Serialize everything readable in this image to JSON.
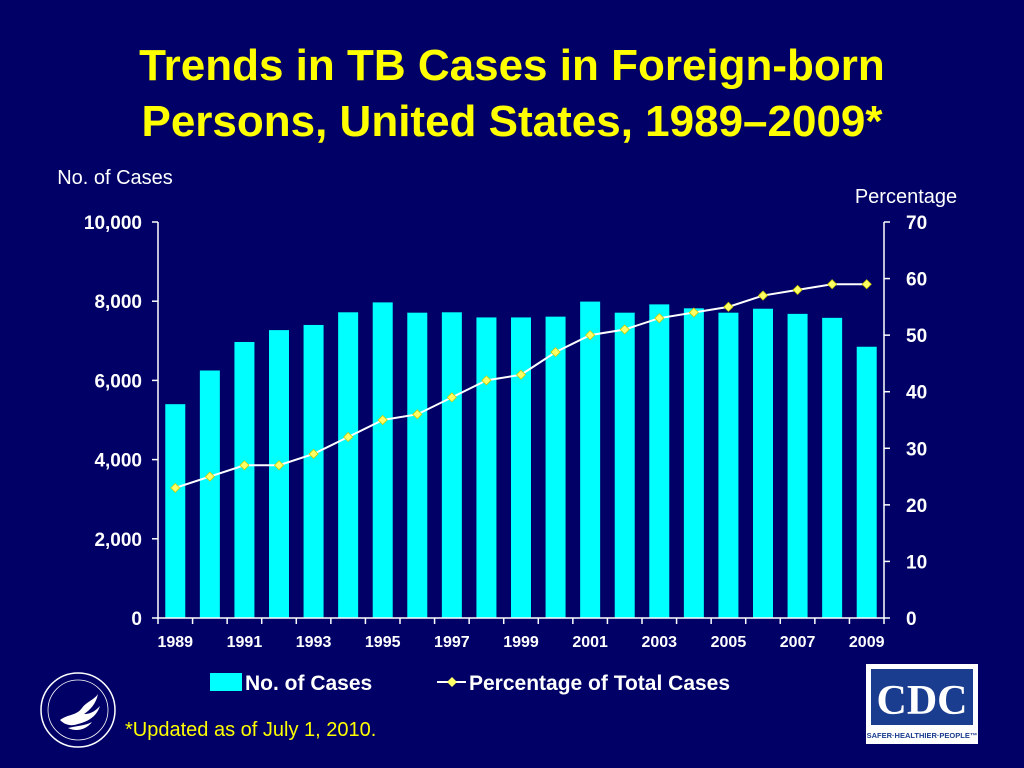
{
  "slide": {
    "title_line1": "Trends in TB Cases in Foreign-born",
    "title_line2": "Persons, United States, 1989–2009*",
    "footnote": "*Updated as of July 1, 2010."
  },
  "logos": {
    "hhs_seal": "hhs-eagle-seal",
    "cdc_text": "CDC",
    "cdc_tagline": "SAFER·HEALTHIER·PEOPLE™"
  },
  "colors": {
    "background": "#000066",
    "title": "#ffff00",
    "bars": "#00ffff",
    "line": "#ffffff",
    "marker": "#ffff66",
    "text": "#ffffff"
  },
  "chart_data": {
    "type": "bar",
    "categories": [
      "1989",
      "1990",
      "1991",
      "1992",
      "1993",
      "1994",
      "1995",
      "1996",
      "1997",
      "1998",
      "1999",
      "2000",
      "2001",
      "2002",
      "2003",
      "2004",
      "2005",
      "2006",
      "2007",
      "2008",
      "2009"
    ],
    "x_tick_labels": [
      "1989",
      "1991",
      "1993",
      "1995",
      "1997",
      "1999",
      "2001",
      "2003",
      "2005",
      "2007",
      "2009"
    ],
    "ylabel_left": "No. of Cases",
    "ylabel_right": "Percentage",
    "ylim_left": [
      0,
      10000
    ],
    "ylim_right": [
      0,
      70
    ],
    "y_ticks_left": [
      "0",
      "2,000",
      "4,000",
      "6,000",
      "8,000",
      "10,000"
    ],
    "y_ticks_right": [
      "0",
      "10",
      "20",
      "30",
      "40",
      "50",
      "60",
      "70"
    ],
    "grid": false,
    "legend_position": "bottom",
    "series": [
      {
        "name": "No. of Cases",
        "type": "bar",
        "axis": "left",
        "values": [
          5400,
          6250,
          6970,
          7270,
          7400,
          7720,
          7970,
          7710,
          7720,
          7590,
          7590,
          7610,
          7990,
          7710,
          7920,
          7820,
          7710,
          7810,
          7680,
          7580,
          6850
        ]
      },
      {
        "name": "Percentage of Total Cases",
        "type": "line",
        "axis": "right",
        "values": [
          23,
          25,
          27,
          27,
          29,
          32,
          35,
          36,
          39,
          42,
          43,
          47,
          50,
          51,
          53,
          54,
          55,
          57,
          58,
          59,
          59
        ]
      }
    ]
  }
}
